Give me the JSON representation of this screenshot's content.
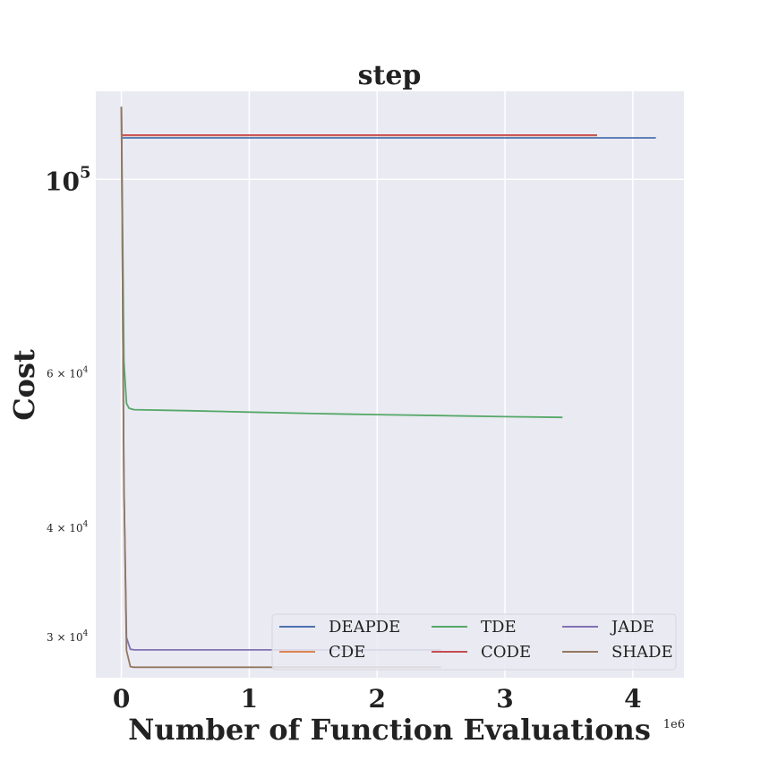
{
  "chart_data": {
    "type": "line",
    "title": "step",
    "xlabel": "Number of Function Evaluations",
    "ylabel": "Cost",
    "x_offset_label": "1e6",
    "yscale": "log",
    "xlim": [
      -0.2,
      4.4
    ],
    "ylim": [
      27000,
      126000
    ],
    "x_ticks": [
      {
        "value": 0,
        "label": "0"
      },
      {
        "value": 1,
        "label": "1"
      },
      {
        "value": 2,
        "label": "2"
      },
      {
        "value": 3,
        "label": "3"
      },
      {
        "value": 4,
        "label": "4"
      }
    ],
    "y_ticks": [
      {
        "value": 100000,
        "base": "10",
        "exp": "5",
        "major": true
      },
      {
        "value": 60000,
        "base": "6 × 10",
        "exp": "4",
        "major": false
      },
      {
        "value": 40000,
        "base": "4 × 10",
        "exp": "4",
        "major": false
      },
      {
        "value": 30000,
        "base": "3 × 10",
        "exp": "4",
        "major": false
      }
    ],
    "grid": true,
    "legend_position": "lower-right",
    "series": [
      {
        "name": "DEAPDE",
        "color": "#4c72b0",
        "x": [
          0,
          0.005,
          4.18
        ],
        "y": [
          111500,
          111500,
          111500
        ]
      },
      {
        "name": "CDE",
        "color": "#dd8452",
        "x": [
          0,
          0.005,
          3.72
        ],
        "y": [
          112200,
          112200,
          112200
        ]
      },
      {
        "name": "TDE",
        "color": "#55a868",
        "x": [
          0,
          0.02,
          0.04,
          0.06,
          0.1,
          0.5,
          1.0,
          1.5,
          2.0,
          2.5,
          3.0,
          3.45
        ],
        "y": [
          121000,
          62000,
          55500,
          54800,
          54600,
          54450,
          54250,
          54050,
          53900,
          53750,
          53600,
          53500
        ]
      },
      {
        "name": "CODE",
        "color": "#c44e52",
        "x": [
          0,
          0.005,
          3.72
        ],
        "y": [
          112300,
          112300,
          112300
        ]
      },
      {
        "name": "JADE",
        "color": "#8172b3",
        "x": [
          0,
          0.02,
          0.04,
          0.07,
          0.1,
          1.0,
          2.0,
          2.5
        ],
        "y": [
          121000,
          45000,
          30000,
          29100,
          29050,
          29050,
          29050,
          29050
        ]
      },
      {
        "name": "SHADE",
        "color": "#937860",
        "x": [
          0,
          0.02,
          0.04,
          0.07,
          0.1,
          1.0,
          2.0,
          2.5
        ],
        "y": [
          121000,
          45000,
          29000,
          27800,
          27750,
          27750,
          27750,
          27750
        ]
      }
    ]
  }
}
